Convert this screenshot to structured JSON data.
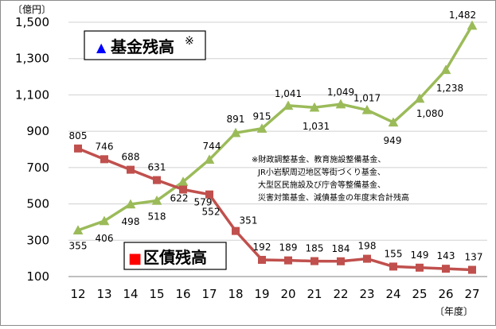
{
  "chart_data": {
    "type": "line",
    "y_unit_label": "〔億円〕",
    "x_unit_label": "〔年度〕",
    "categories": [
      "12",
      "13",
      "14",
      "15",
      "16",
      "17",
      "18",
      "19",
      "20",
      "21",
      "22",
      "23",
      "24",
      "25",
      "26",
      "27"
    ],
    "ylim": [
      100,
      1500
    ],
    "yticks": [
      100,
      300,
      500,
      700,
      900,
      1100,
      1300,
      1500
    ],
    "ytick_labels": [
      "100",
      "300",
      "500",
      "700",
      "900",
      "1,100",
      "1,300",
      "1,500"
    ],
    "grid": true,
    "series": [
      {
        "name": "基金残高",
        "legend_marker": "▲",
        "legend_suffix": "※",
        "color": "#9bbb59",
        "legend_marker_color": "#0000ff",
        "marker": "triangle",
        "values": [
          355,
          406,
          498,
          518,
          622,
          744,
          891,
          915,
          1041,
          1031,
          1049,
          1017,
          949,
          1080,
          1238,
          1482
        ],
        "labels": [
          "355",
          "406",
          "498",
          "518",
          "622",
          "744",
          "891",
          "915",
          "1,041",
          "1,031",
          "1,049",
          "1,017",
          "949",
          "1,080",
          "1,238",
          "1,482"
        ]
      },
      {
        "name": "区債残高",
        "legend_marker": "■",
        "color": "#c0504d",
        "legend_marker_color": "#ff0000",
        "marker": "square",
        "values": [
          805,
          746,
          688,
          631,
          579,
          552,
          351,
          192,
          189,
          185,
          184,
          198,
          155,
          149,
          143,
          137
        ],
        "labels": [
          "805",
          "746",
          "688",
          "631",
          "579",
          "552",
          "351",
          "192",
          "189",
          "185",
          "184",
          "198",
          "155",
          "149",
          "143",
          "137"
        ]
      }
    ],
    "annotation_lines": [
      "※財政調整基金、教育施設整備基金、",
      "JR小岩駅周辺地区等街づくり基金、",
      "大型区民施設及び庁舎等整備基金、",
      "災害対策基金、減債基金の年度末合計残高"
    ]
  }
}
